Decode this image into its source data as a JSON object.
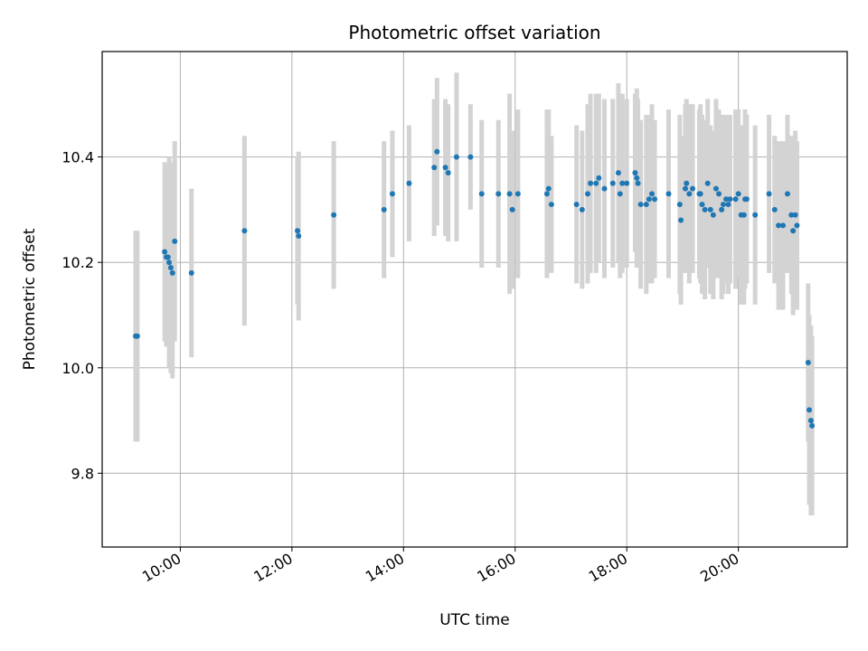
{
  "chart_data": {
    "type": "scatter",
    "title": "Photometric offset variation",
    "xlabel": "UTC time",
    "ylabel": "Photometric offset",
    "x_unit": "hour of day (UTC)",
    "xlim": [
      8.6,
      21.95
    ],
    "ylim": [
      9.66,
      10.6
    ],
    "x_ticks": [
      10,
      12,
      14,
      16,
      18,
      20
    ],
    "x_tick_labels": [
      "10:00",
      "12:00",
      "14:00",
      "16:00",
      "18:00",
      "20:00"
    ],
    "y_ticks": [
      9.8,
      10.0,
      10.2,
      10.4
    ],
    "y_tick_labels": [
      "9.8",
      "10.0",
      "10.2",
      "10.4"
    ],
    "grid": true,
    "legend": false,
    "colors": {
      "point": "#1f77b4",
      "errorbar": "#d3d3d3",
      "grid": "#b0b0b0"
    },
    "points": [
      [
        9.2,
        10.06,
        0.2
      ],
      [
        9.23,
        10.06,
        0.2
      ],
      [
        9.72,
        10.22,
        0.17
      ],
      [
        9.75,
        10.21,
        0.17
      ],
      [
        9.78,
        10.21,
        0.17
      ],
      [
        9.8,
        10.2,
        0.2
      ],
      [
        9.83,
        10.19,
        0.2
      ],
      [
        9.86,
        10.18,
        0.2
      ],
      [
        9.9,
        10.24,
        0.19
      ],
      [
        10.2,
        10.18,
        0.16
      ],
      [
        11.15,
        10.26,
        0.18
      ],
      [
        12.1,
        10.26,
        0.14
      ],
      [
        12.12,
        10.25,
        0.16
      ],
      [
        12.75,
        10.29,
        0.14
      ],
      [
        13.65,
        10.3,
        0.13
      ],
      [
        13.8,
        10.33,
        0.12
      ],
      [
        14.1,
        10.35,
        0.11
      ],
      [
        14.55,
        10.38,
        0.13
      ],
      [
        14.6,
        10.41,
        0.14
      ],
      [
        14.75,
        10.38,
        0.13
      ],
      [
        14.8,
        10.37,
        0.13
      ],
      [
        14.95,
        10.4,
        0.16
      ],
      [
        15.2,
        10.4,
        0.1
      ],
      [
        15.4,
        10.33,
        0.14
      ],
      [
        15.7,
        10.33,
        0.14
      ],
      [
        15.9,
        10.33,
        0.19
      ],
      [
        15.95,
        10.3,
        0.15
      ],
      [
        16.05,
        10.33,
        0.16
      ],
      [
        16.57,
        10.33,
        0.16
      ],
      [
        16.6,
        10.34,
        0.15
      ],
      [
        16.65,
        10.31,
        0.13
      ],
      [
        17.1,
        10.31,
        0.15
      ],
      [
        17.2,
        10.3,
        0.15
      ],
      [
        17.3,
        10.33,
        0.17
      ],
      [
        17.35,
        10.35,
        0.17
      ],
      [
        17.45,
        10.35,
        0.17
      ],
      [
        17.5,
        10.36,
        0.16
      ],
      [
        17.6,
        10.34,
        0.17
      ],
      [
        17.75,
        10.35,
        0.16
      ],
      [
        17.85,
        10.37,
        0.17
      ],
      [
        17.88,
        10.33,
        0.16
      ],
      [
        17.92,
        10.35,
        0.17
      ],
      [
        18.0,
        10.35,
        0.16
      ],
      [
        18.15,
        10.37,
        0.15
      ],
      [
        18.18,
        10.36,
        0.17
      ],
      [
        18.2,
        10.35,
        0.16
      ],
      [
        18.25,
        10.31,
        0.16
      ],
      [
        18.35,
        10.31,
        0.17
      ],
      [
        18.4,
        10.32,
        0.16
      ],
      [
        18.45,
        10.33,
        0.17
      ],
      [
        18.5,
        10.32,
        0.15
      ],
      [
        18.75,
        10.33,
        0.16
      ],
      [
        18.95,
        10.31,
        0.17
      ],
      [
        18.97,
        10.28,
        0.16
      ],
      [
        19.05,
        10.34,
        0.16
      ],
      [
        19.07,
        10.35,
        0.16
      ],
      [
        19.12,
        10.33,
        0.17
      ],
      [
        19.18,
        10.34,
        0.16
      ],
      [
        19.3,
        10.33,
        0.16
      ],
      [
        19.32,
        10.33,
        0.17
      ],
      [
        19.35,
        10.31,
        0.17
      ],
      [
        19.4,
        10.3,
        0.17
      ],
      [
        19.45,
        10.35,
        0.16
      ],
      [
        19.5,
        10.3,
        0.16
      ],
      [
        19.55,
        10.29,
        0.16
      ],
      [
        19.6,
        10.34,
        0.17
      ],
      [
        19.65,
        10.33,
        0.16
      ],
      [
        19.7,
        10.3,
        0.17
      ],
      [
        19.73,
        10.31,
        0.17
      ],
      [
        19.78,
        10.32,
        0.16
      ],
      [
        19.82,
        10.31,
        0.17
      ],
      [
        19.85,
        10.32,
        0.16
      ],
      [
        19.95,
        10.32,
        0.17
      ],
      [
        20.0,
        10.33,
        0.16
      ],
      [
        20.05,
        10.29,
        0.17
      ],
      [
        20.1,
        10.29,
        0.17
      ],
      [
        20.12,
        10.32,
        0.17
      ],
      [
        20.15,
        10.32,
        0.16
      ],
      [
        20.3,
        10.29,
        0.17
      ],
      [
        20.55,
        10.33,
        0.15
      ],
      [
        20.65,
        10.3,
        0.14
      ],
      [
        20.72,
        10.27,
        0.16
      ],
      [
        20.8,
        10.27,
        0.16
      ],
      [
        20.88,
        10.33,
        0.15
      ],
      [
        20.95,
        10.29,
        0.15
      ],
      [
        20.98,
        10.26,
        0.16
      ],
      [
        21.02,
        10.29,
        0.16
      ],
      [
        21.05,
        10.27,
        0.16
      ],
      [
        21.25,
        10.01,
        0.15
      ],
      [
        21.27,
        9.92,
        0.18
      ],
      [
        21.3,
        9.9,
        0.18
      ],
      [
        21.32,
        9.89,
        0.17
      ]
    ]
  }
}
